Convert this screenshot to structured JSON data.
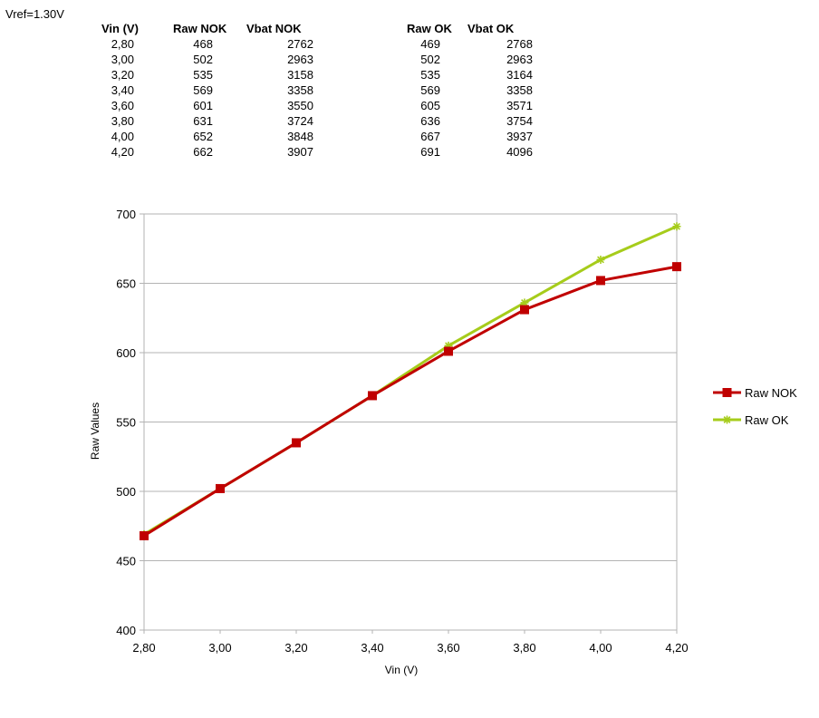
{
  "vref_label": "Vref=1.30V",
  "table": {
    "headers": [
      "Vin (V)",
      "Raw NOK",
      "Vbat NOK",
      "Raw OK",
      "Vbat OK"
    ],
    "rows": [
      [
        "2,80",
        "468",
        "2762",
        "469",
        "2768"
      ],
      [
        "3,00",
        "502",
        "2963",
        "502",
        "2963"
      ],
      [
        "3,20",
        "535",
        "3158",
        "535",
        "3164"
      ],
      [
        "3,40",
        "569",
        "3358",
        "569",
        "3358"
      ],
      [
        "3,60",
        "601",
        "3550",
        "605",
        "3571"
      ],
      [
        "3,80",
        "631",
        "3724",
        "636",
        "3754"
      ],
      [
        "4,00",
        "652",
        "3848",
        "667",
        "3937"
      ],
      [
        "4,20",
        "662",
        "3907",
        "691",
        "4096"
      ]
    ]
  },
  "chart_data": {
    "type": "line",
    "categories": [
      "2,80",
      "3,00",
      "3,20",
      "3,40",
      "3,60",
      "3,80",
      "4,00",
      "4,20"
    ],
    "xlabel": "Vin (V)",
    "ylabel": "Raw Values",
    "ylim": [
      400,
      700
    ],
    "yticks": [
      "400",
      "450",
      "500",
      "550",
      "600",
      "650",
      "700"
    ],
    "grid": "horizontal",
    "legend": "right",
    "series": [
      {
        "name": "Raw NOK",
        "values": [
          468,
          502,
          535,
          569,
          601,
          631,
          652,
          662
        ],
        "color": "#c00000",
        "marker": "square"
      },
      {
        "name": "Raw OK",
        "values": [
          469,
          502,
          535,
          569,
          605,
          636,
          667,
          691
        ],
        "color": "#a6cc1b",
        "marker": "star"
      }
    ]
  }
}
